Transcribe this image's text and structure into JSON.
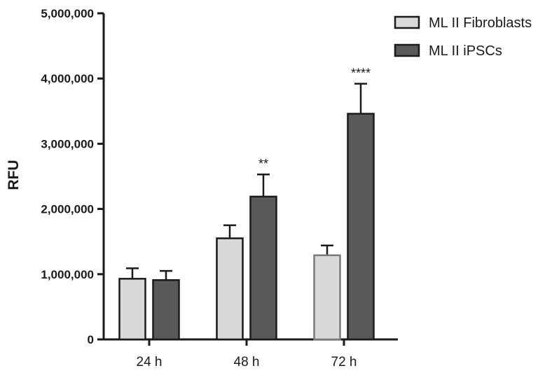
{
  "chart_data": {
    "type": "bar",
    "title": "",
    "xlabel": "",
    "ylabel": "RFU",
    "ylim": [
      0,
      5000000
    ],
    "yticks": [
      0,
      1000000,
      2000000,
      3000000,
      4000000,
      5000000
    ],
    "ytick_labels": [
      "0",
      "1,000,000",
      "2,000,000",
      "3,000,000",
      "4,000,000",
      "5,000,000"
    ],
    "categories": [
      "24 h",
      "48 h",
      "72 h"
    ],
    "series": [
      {
        "name": "ML II Fibroblasts",
        "color": "#d9d9d9",
        "values": [
          930000,
          1550000,
          1290000
        ],
        "error": [
          160000,
          200000,
          150000
        ]
      },
      {
        "name": "ML II iPSCs",
        "color": "#595959",
        "values": [
          910000,
          2190000,
          3460000
        ],
        "error": [
          140000,
          340000,
          460000
        ]
      }
    ],
    "annotations": [
      {
        "category": "48 h",
        "series": "ML II iPSCs",
        "text": "**"
      },
      {
        "category": "72 h",
        "series": "ML II iPSCs",
        "text": "****"
      }
    ],
    "legend": "top-right",
    "grid": false
  }
}
